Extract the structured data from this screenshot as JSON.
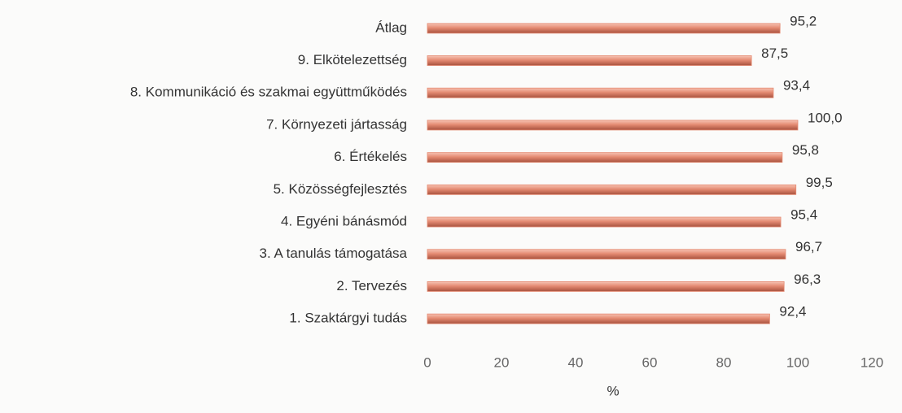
{
  "chart_data": {
    "type": "bar",
    "orientation": "horizontal",
    "categories": [
      "Átlag",
      "9. Elkötelezettség",
      "8. Kommunikáció és szakmai együttműködés",
      "7. Környezeti jártasság",
      "6. Értékelés",
      "5. Közösségfejlesztés",
      "4. Egyéni bánásmód",
      "3. A tanulás támogatása",
      "2. Tervezés",
      "1. Szaktárgyi tudás"
    ],
    "values": [
      95.2,
      87.5,
      93.4,
      100.0,
      95.8,
      99.5,
      95.4,
      96.7,
      96.3,
      92.4
    ],
    "value_labels": [
      "95,2",
      "87,5",
      "93,4",
      "100,0",
      "95,8",
      "99,5",
      "95,4",
      "96,7",
      "96,3",
      "92,4"
    ],
    "color": "#e48a72",
    "xlabel": "%",
    "xlim": [
      0,
      120
    ],
    "xticks": [
      0,
      20,
      40,
      60,
      80,
      100,
      120
    ],
    "grid": false
  }
}
